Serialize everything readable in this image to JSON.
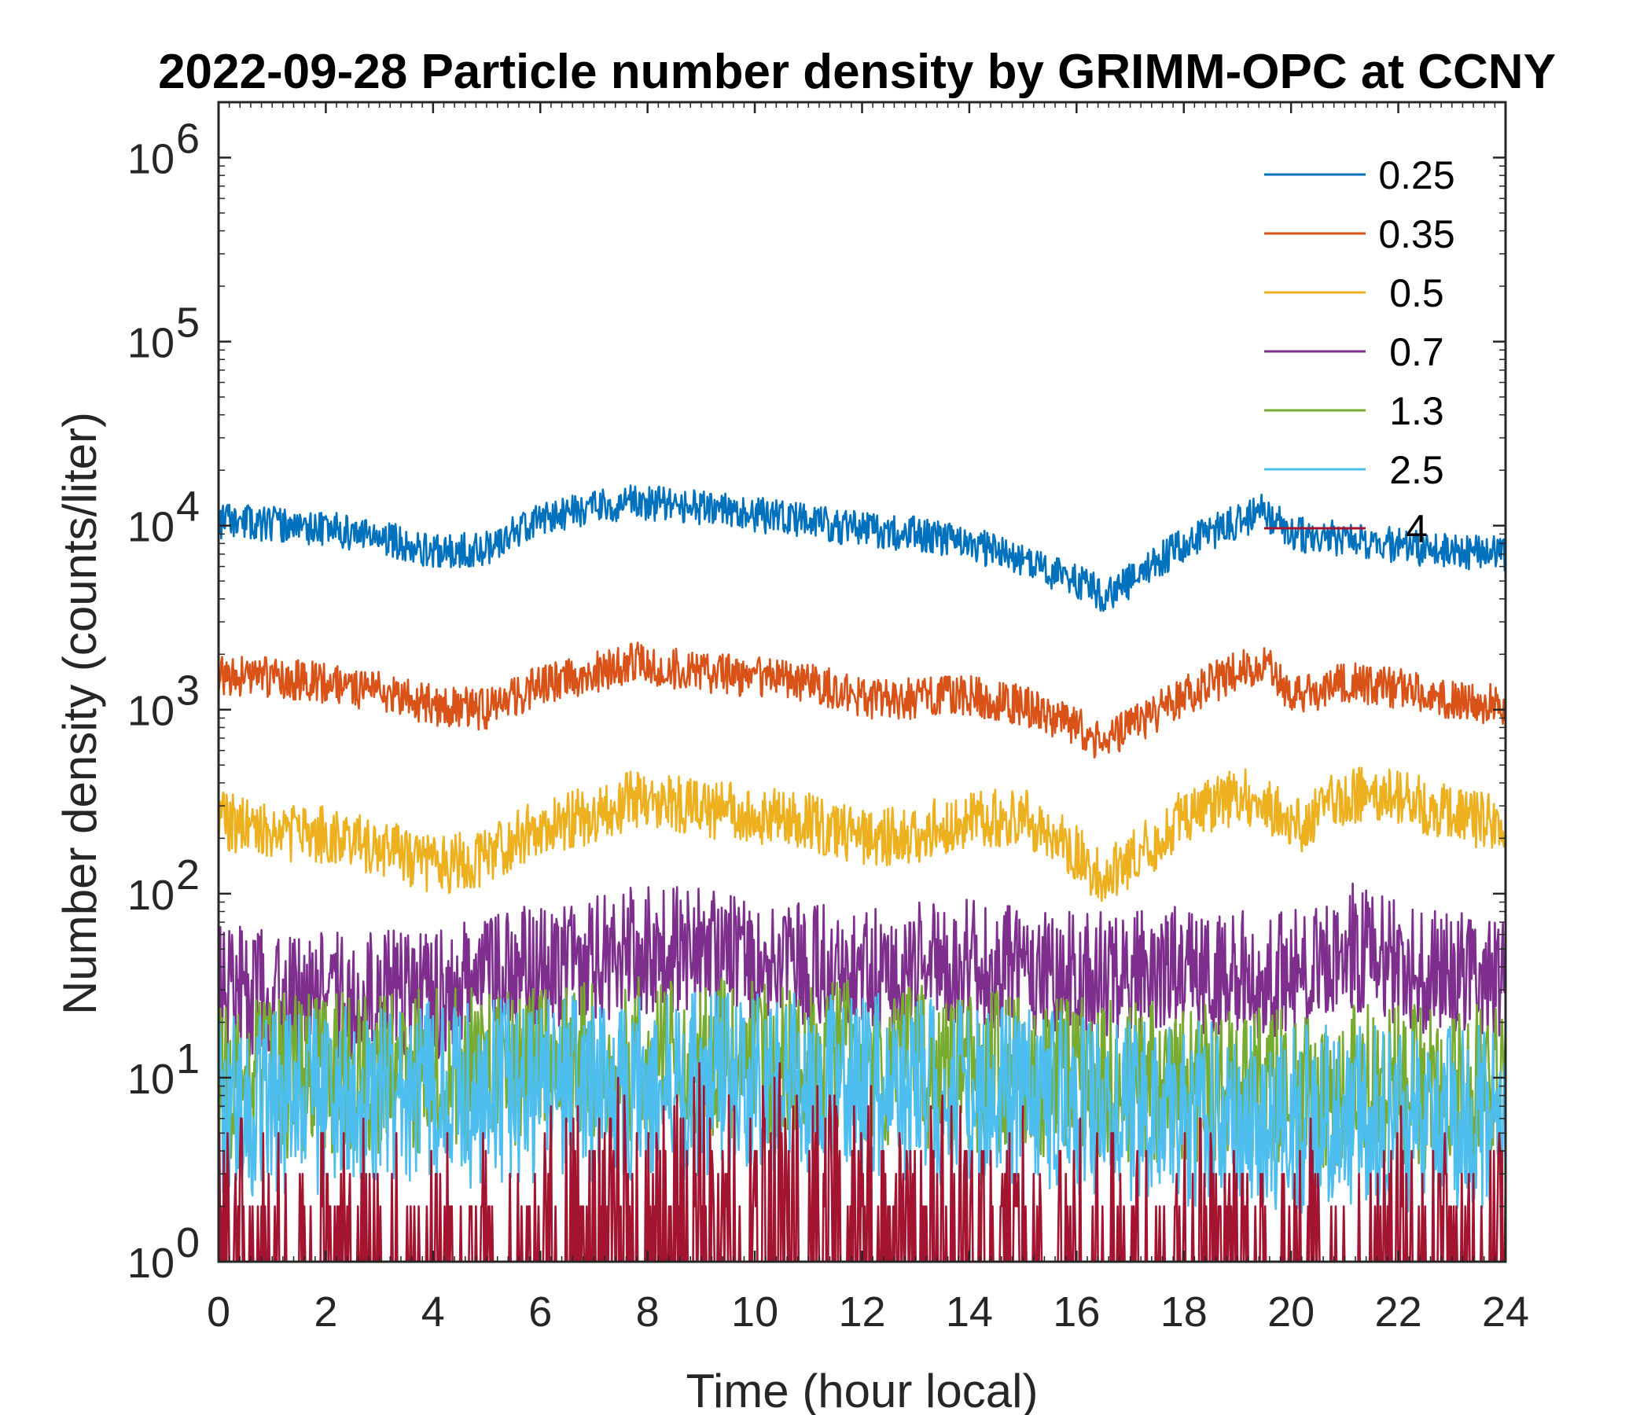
{
  "chart_data": {
    "type": "line",
    "title": "2022-09-28 Particle number density by GRIMM-OPC at CCNY",
    "xlabel": "Time (hour local)",
    "ylabel": "Number density (counts/liter)",
    "xlim": [
      0,
      24
    ],
    "ylim": [
      1,
      2000000
    ],
    "yscale": "log",
    "xticks": [
      0,
      2,
      4,
      6,
      8,
      10,
      12,
      14,
      16,
      18,
      20,
      22,
      24
    ],
    "yticks": [
      {
        "base": "10",
        "exp": "0"
      },
      {
        "base": "10",
        "exp": "1"
      },
      {
        "base": "10",
        "exp": "2"
      },
      {
        "base": "10",
        "exp": "3"
      },
      {
        "base": "10",
        "exp": "4"
      },
      {
        "base": "10",
        "exp": "5"
      },
      {
        "base": "10",
        "exp": "6"
      }
    ],
    "legend_position": "top-right",
    "series": [
      {
        "name": "0.25",
        "color": "#0072BD",
        "noise": 0.06,
        "seed": 11,
        "x": [
          0,
          1,
          2,
          3,
          4,
          5,
          6,
          7,
          7.8,
          9,
          10,
          11,
          12,
          13,
          14,
          15,
          16,
          16.5,
          17,
          18,
          19,
          19.5,
          20,
          21,
          22,
          23,
          24
        ],
        "values": [
          10500,
          10200,
          9600,
          8700,
          7200,
          7500,
          11000,
          12500,
          13500,
          12500,
          11500,
          10500,
          9500,
          9000,
          8000,
          6500,
          5000,
          4200,
          5000,
          8000,
          10500,
          12000,
          9000,
          8500,
          7800,
          7200,
          7000
        ]
      },
      {
        "name": "0.35",
        "color": "#D95319",
        "noise": 0.07,
        "seed": 23,
        "x": [
          0,
          1,
          2,
          3,
          4,
          5,
          6,
          7,
          7.8,
          9,
          10,
          11,
          12,
          13,
          14,
          15,
          16,
          16.5,
          17,
          18,
          19,
          19.5,
          20,
          21,
          22,
          23,
          24
        ],
        "values": [
          1500,
          1500,
          1400,
          1250,
          1050,
          1000,
          1350,
          1600,
          1800,
          1600,
          1500,
          1400,
          1150,
          1150,
          1200,
          1050,
          800,
          650,
          800,
          1200,
          1600,
          1800,
          1150,
          1400,
          1300,
          1150,
          1050
        ]
      },
      {
        "name": "0.5",
        "color": "#EDB120",
        "noise": 0.1,
        "seed": 37,
        "x": [
          0,
          1,
          2,
          3,
          4,
          5,
          6,
          7,
          7.8,
          9,
          10,
          11,
          12,
          13,
          14,
          15,
          16,
          16.5,
          17,
          18,
          19,
          19.5,
          20,
          21,
          22,
          23,
          24
        ],
        "values": [
          250,
          220,
          210,
          180,
          140,
          160,
          230,
          270,
          330,
          290,
          270,
          250,
          200,
          210,
          260,
          260,
          170,
          120,
          150,
          260,
          340,
          320,
          220,
          340,
          330,
          270,
          230
        ]
      },
      {
        "name": "0.7",
        "color": "#7E2F8E",
        "noise": 0.22,
        "seed": 53,
        "x": [
          0,
          2,
          4,
          6,
          8,
          10,
          12,
          14,
          16,
          18,
          20,
          21,
          22,
          24
        ],
        "values": [
          30,
          28,
          28,
          40,
          50,
          45,
          38,
          42,
          35,
          40,
          35,
          55,
          40,
          32
        ]
      },
      {
        "name": "1.3",
        "color": "#77AC30",
        "noise": 0.28,
        "seed": 71,
        "x": [
          0,
          4,
          8,
          12,
          16,
          20,
          24
        ],
        "values": [
          10,
          11,
          13,
          12,
          10,
          9,
          9
        ]
      },
      {
        "name": "2.5",
        "color": "#4DBEEE",
        "noise": 0.32,
        "seed": 89,
        "x": [
          0,
          4,
          8,
          12,
          16,
          20,
          24
        ],
        "values": [
          7,
          8,
          9,
          9,
          7,
          6,
          6
        ]
      },
      {
        "name": "4",
        "color": "#A2142F",
        "noise": 0.35,
        "seed": 97,
        "x": [
          0,
          2,
          4,
          6,
          8,
          10,
          12,
          14,
          16,
          18,
          20,
          22,
          24
        ],
        "values": [
          1,
          1,
          1,
          1.3,
          1.6,
          2.2,
          1.6,
          1.3,
          1,
          1,
          1,
          1,
          1
        ]
      }
    ]
  }
}
